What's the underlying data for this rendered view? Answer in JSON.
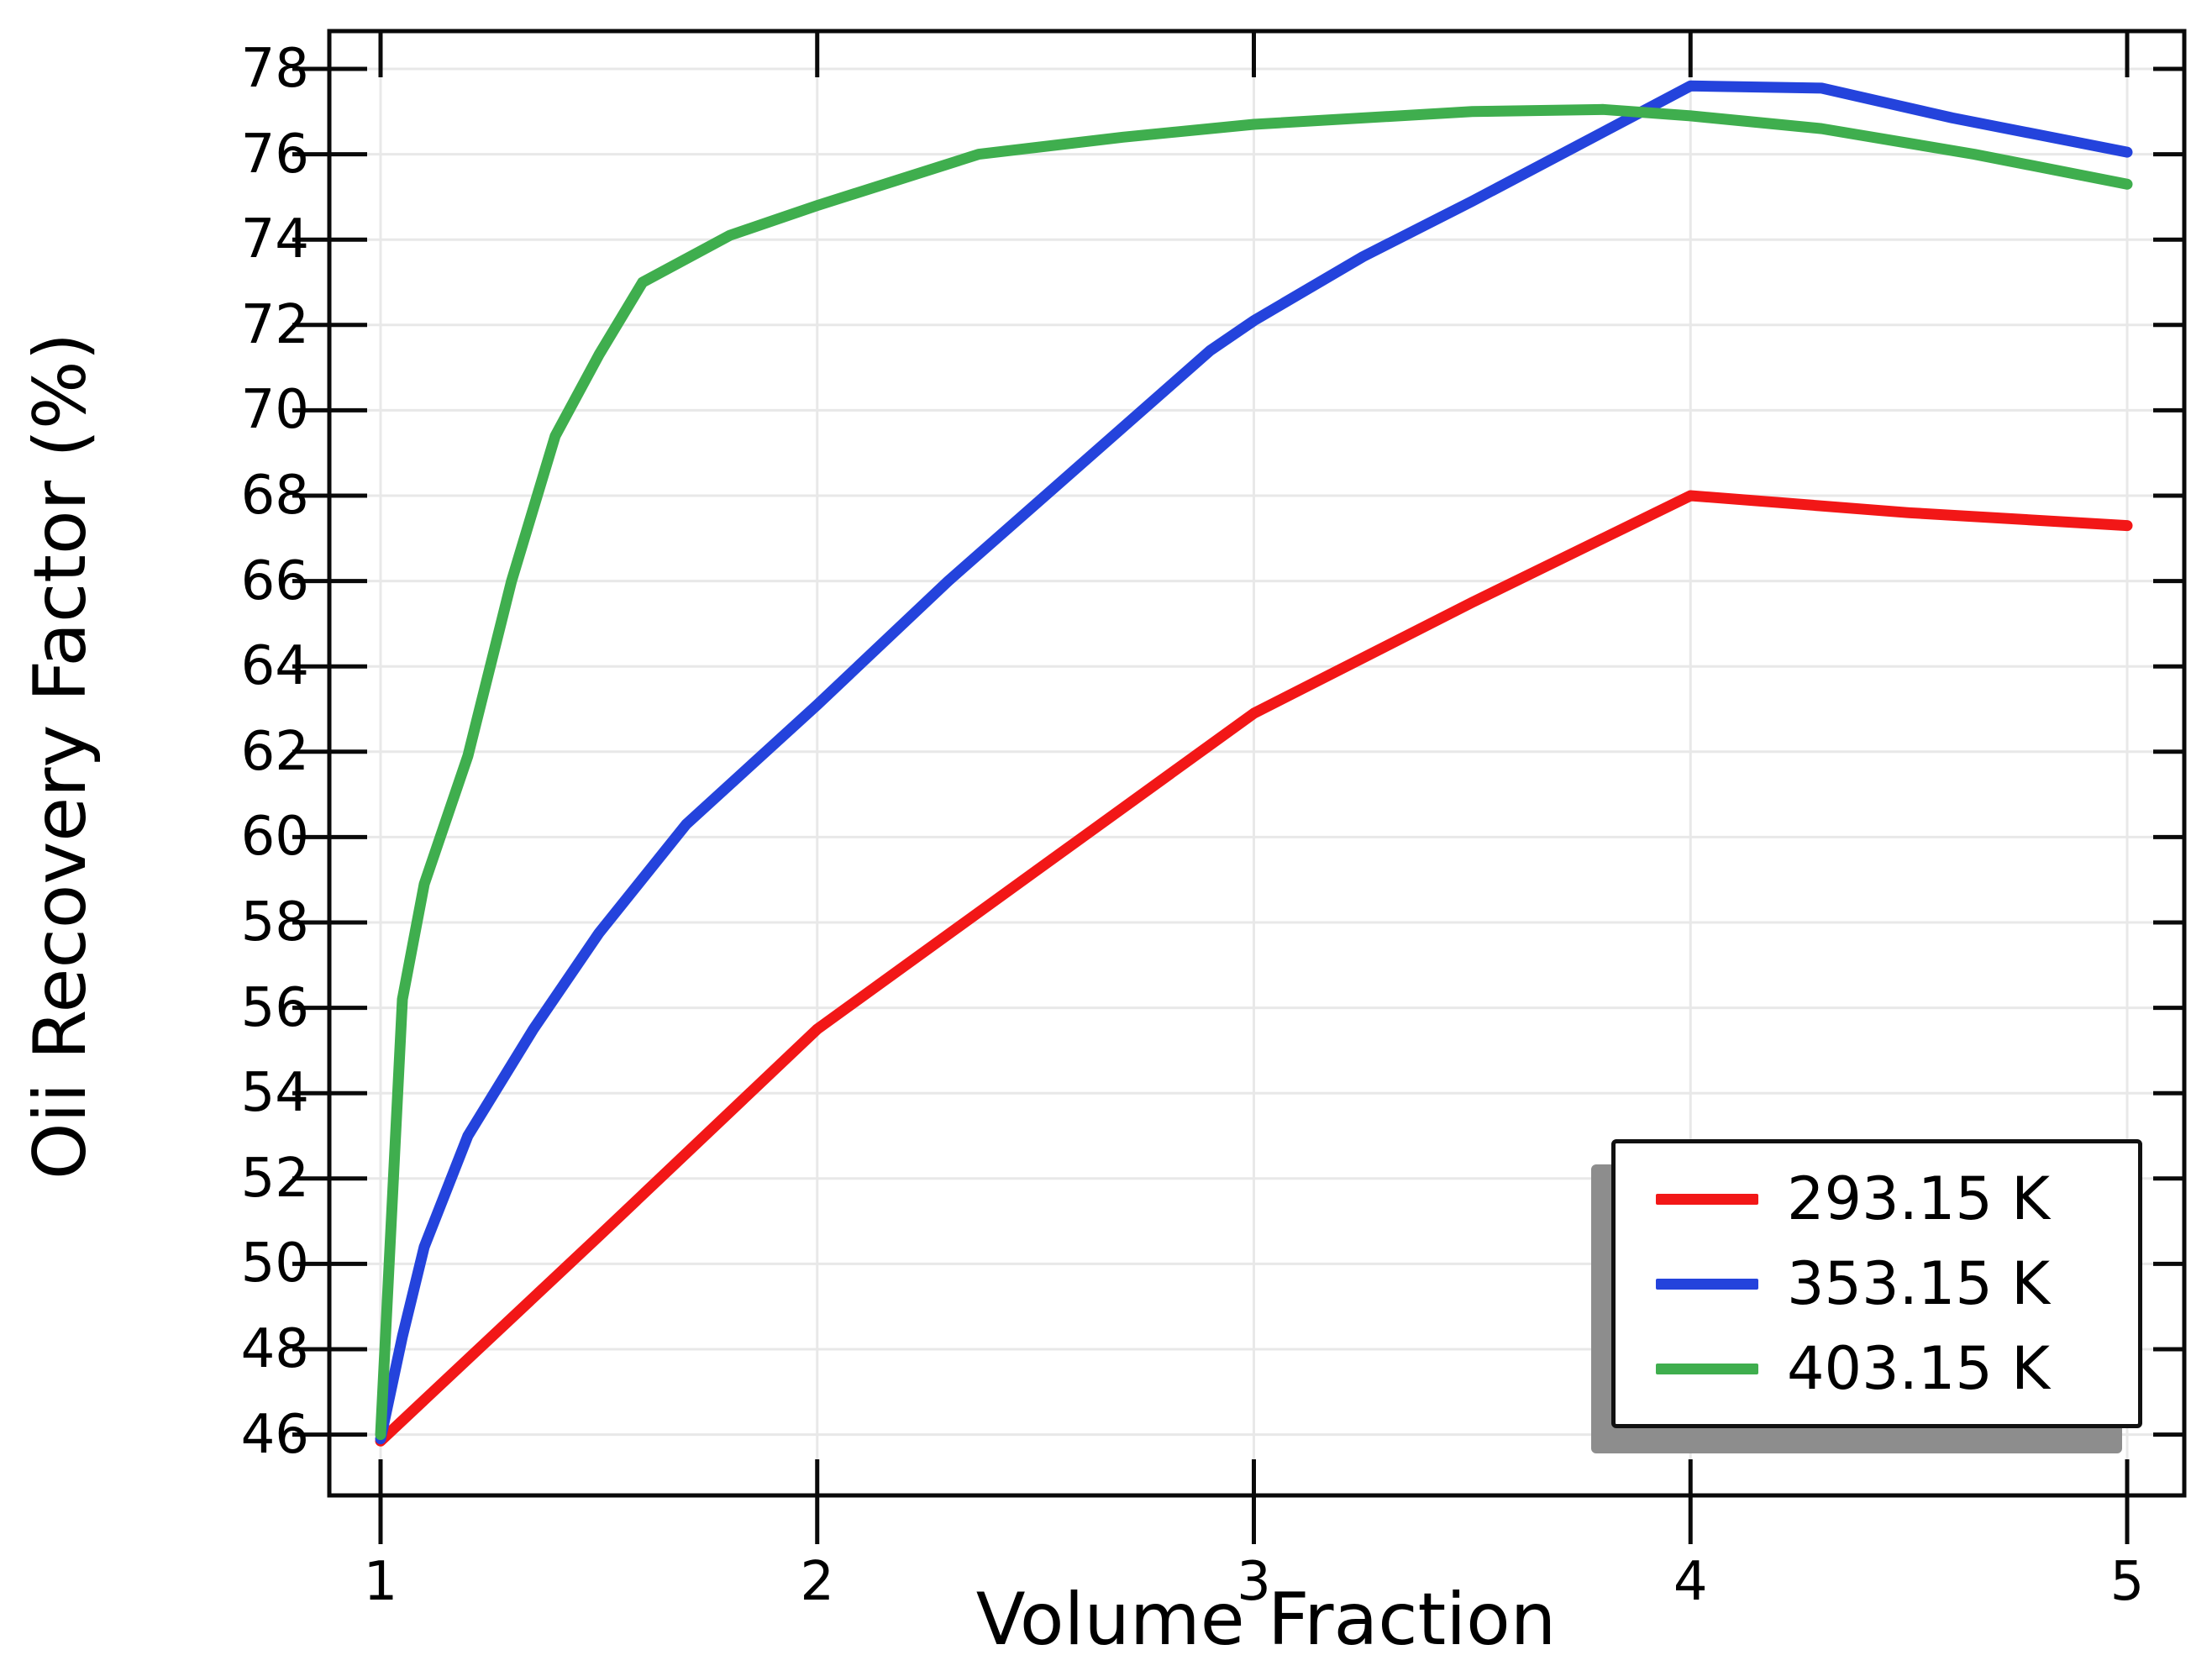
{
  "chart_data": {
    "type": "line",
    "title": "",
    "xlabel": "Volume Fraction",
    "ylabel": "Oii Recovery Factor (%)",
    "x_ticks": [
      1,
      2,
      3,
      4,
      5
    ],
    "y_ticks": [
      46,
      48,
      50,
      52,
      54,
      56,
      58,
      60,
      62,
      64,
      66,
      68,
      70,
      72,
      74,
      76,
      78
    ],
    "axis_range": {
      "x": [
        0.883,
        5.131
      ],
      "y": [
        44.57,
        78.89
      ]
    },
    "grid": true,
    "grid_color": "#e8e8e8",
    "frame_color": "#0a0a0a",
    "legend_position": "bottom-right",
    "series": [
      {
        "name": "293.15 K",
        "color": "#f21717",
        "points": [
          [
            1,
            45.85
          ],
          [
            1.5,
            50.65
          ],
          [
            2,
            55.5
          ],
          [
            2.5,
            59.2
          ],
          [
            3,
            62.9
          ],
          [
            3.5,
            65.5
          ],
          [
            4,
            68.0
          ],
          [
            4.5,
            67.6
          ],
          [
            5,
            67.3
          ]
        ]
      },
      {
        "name": "353.15 K",
        "color": "#2443dc",
        "points": [
          [
            1,
            45.9
          ],
          [
            1.05,
            48.3
          ],
          [
            1.1,
            50.4
          ],
          [
            1.2,
            53.0
          ],
          [
            1.35,
            55.5
          ],
          [
            1.5,
            57.75
          ],
          [
            1.7,
            60.3
          ],
          [
            2,
            63.1
          ],
          [
            2.3,
            66.0
          ],
          [
            2.9,
            71.4
          ],
          [
            3,
            72.1
          ],
          [
            3.25,
            73.6
          ],
          [
            3.5,
            74.9
          ],
          [
            4,
            77.6
          ],
          [
            4.3,
            77.55
          ],
          [
            4.6,
            76.85
          ],
          [
            5,
            76.05
          ]
        ]
      },
      {
        "name": "403.15 K",
        "color": "#3fae4e",
        "points": [
          [
            1,
            46.0
          ],
          [
            1.05,
            56.2
          ],
          [
            1.1,
            58.9
          ],
          [
            1.2,
            61.9
          ],
          [
            1.3,
            66.0
          ],
          [
            1.4,
            69.4
          ],
          [
            1.5,
            71.3
          ],
          [
            1.6,
            73.0
          ],
          [
            1.8,
            74.1
          ],
          [
            2,
            74.8
          ],
          [
            2.37,
            76.0
          ],
          [
            2.7,
            76.4
          ],
          [
            3,
            76.7
          ],
          [
            3.5,
            77.0
          ],
          [
            3.8,
            77.05
          ],
          [
            4,
            76.9
          ],
          [
            4.3,
            76.6
          ],
          [
            4.65,
            76.0
          ],
          [
            5,
            75.3
          ]
        ]
      }
    ]
  }
}
